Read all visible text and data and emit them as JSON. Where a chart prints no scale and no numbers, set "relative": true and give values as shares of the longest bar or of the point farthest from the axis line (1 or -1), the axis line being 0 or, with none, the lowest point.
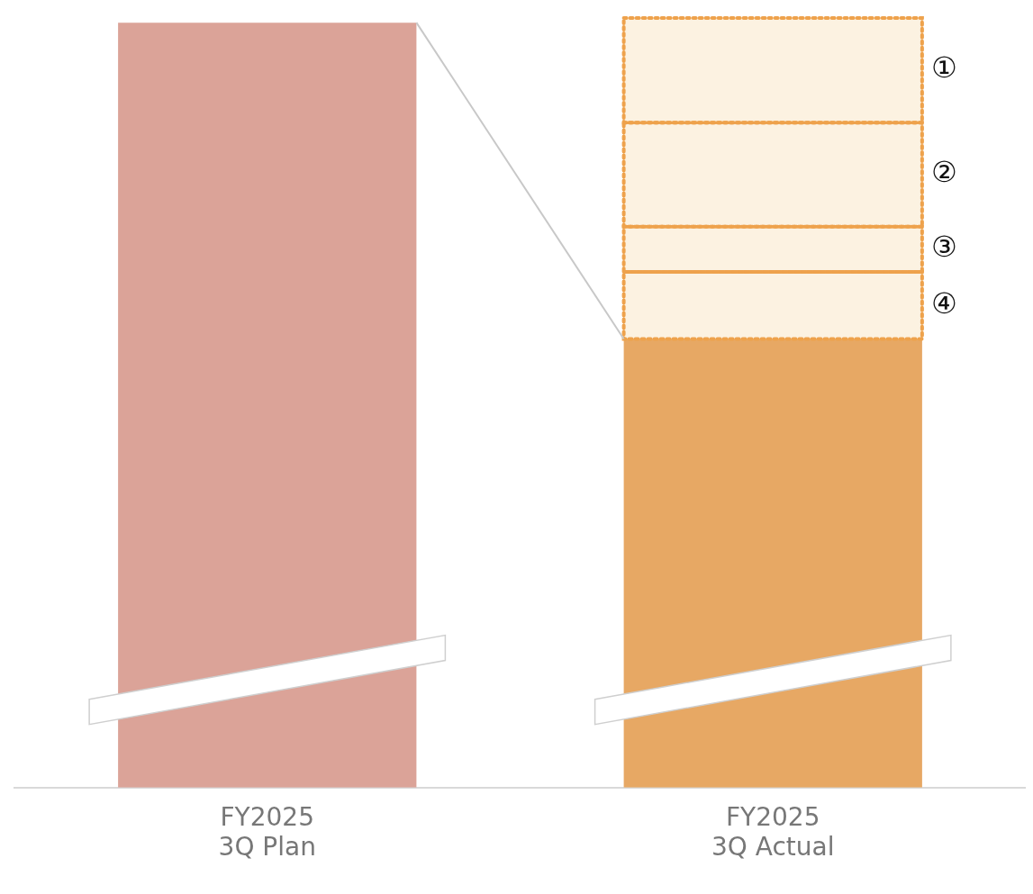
{
  "chart_data": {
    "type": "bar",
    "relative": true,
    "stacked": true,
    "legend": false,
    "grid": false,
    "categories": [
      "FY2025\n3Q Plan",
      "FY2025\n3Q Actual"
    ],
    "series": [
      {
        "colors": [
          "#dba398",
          "#e7a864"
        ],
        "values": [
          0.994,
          0.583
        ]
      },
      {
        "name": "④",
        "color": "#fcf2e1",
        "line_style": "dotted",
        "values": [
          null,
          0.087
        ]
      },
      {
        "name": "③",
        "color": "#fcf2e1",
        "line_style": "dotted",
        "values": [
          null,
          0.059
        ]
      },
      {
        "name": "②",
        "color": "#fcf2e1",
        "line_style": "dotted",
        "values": [
          null,
          0.135
        ]
      },
      {
        "name": "①",
        "color": "#fcf2e1",
        "line_style": "dotted",
        "values": [
          null,
          0.136
        ]
      }
    ]
  }
}
